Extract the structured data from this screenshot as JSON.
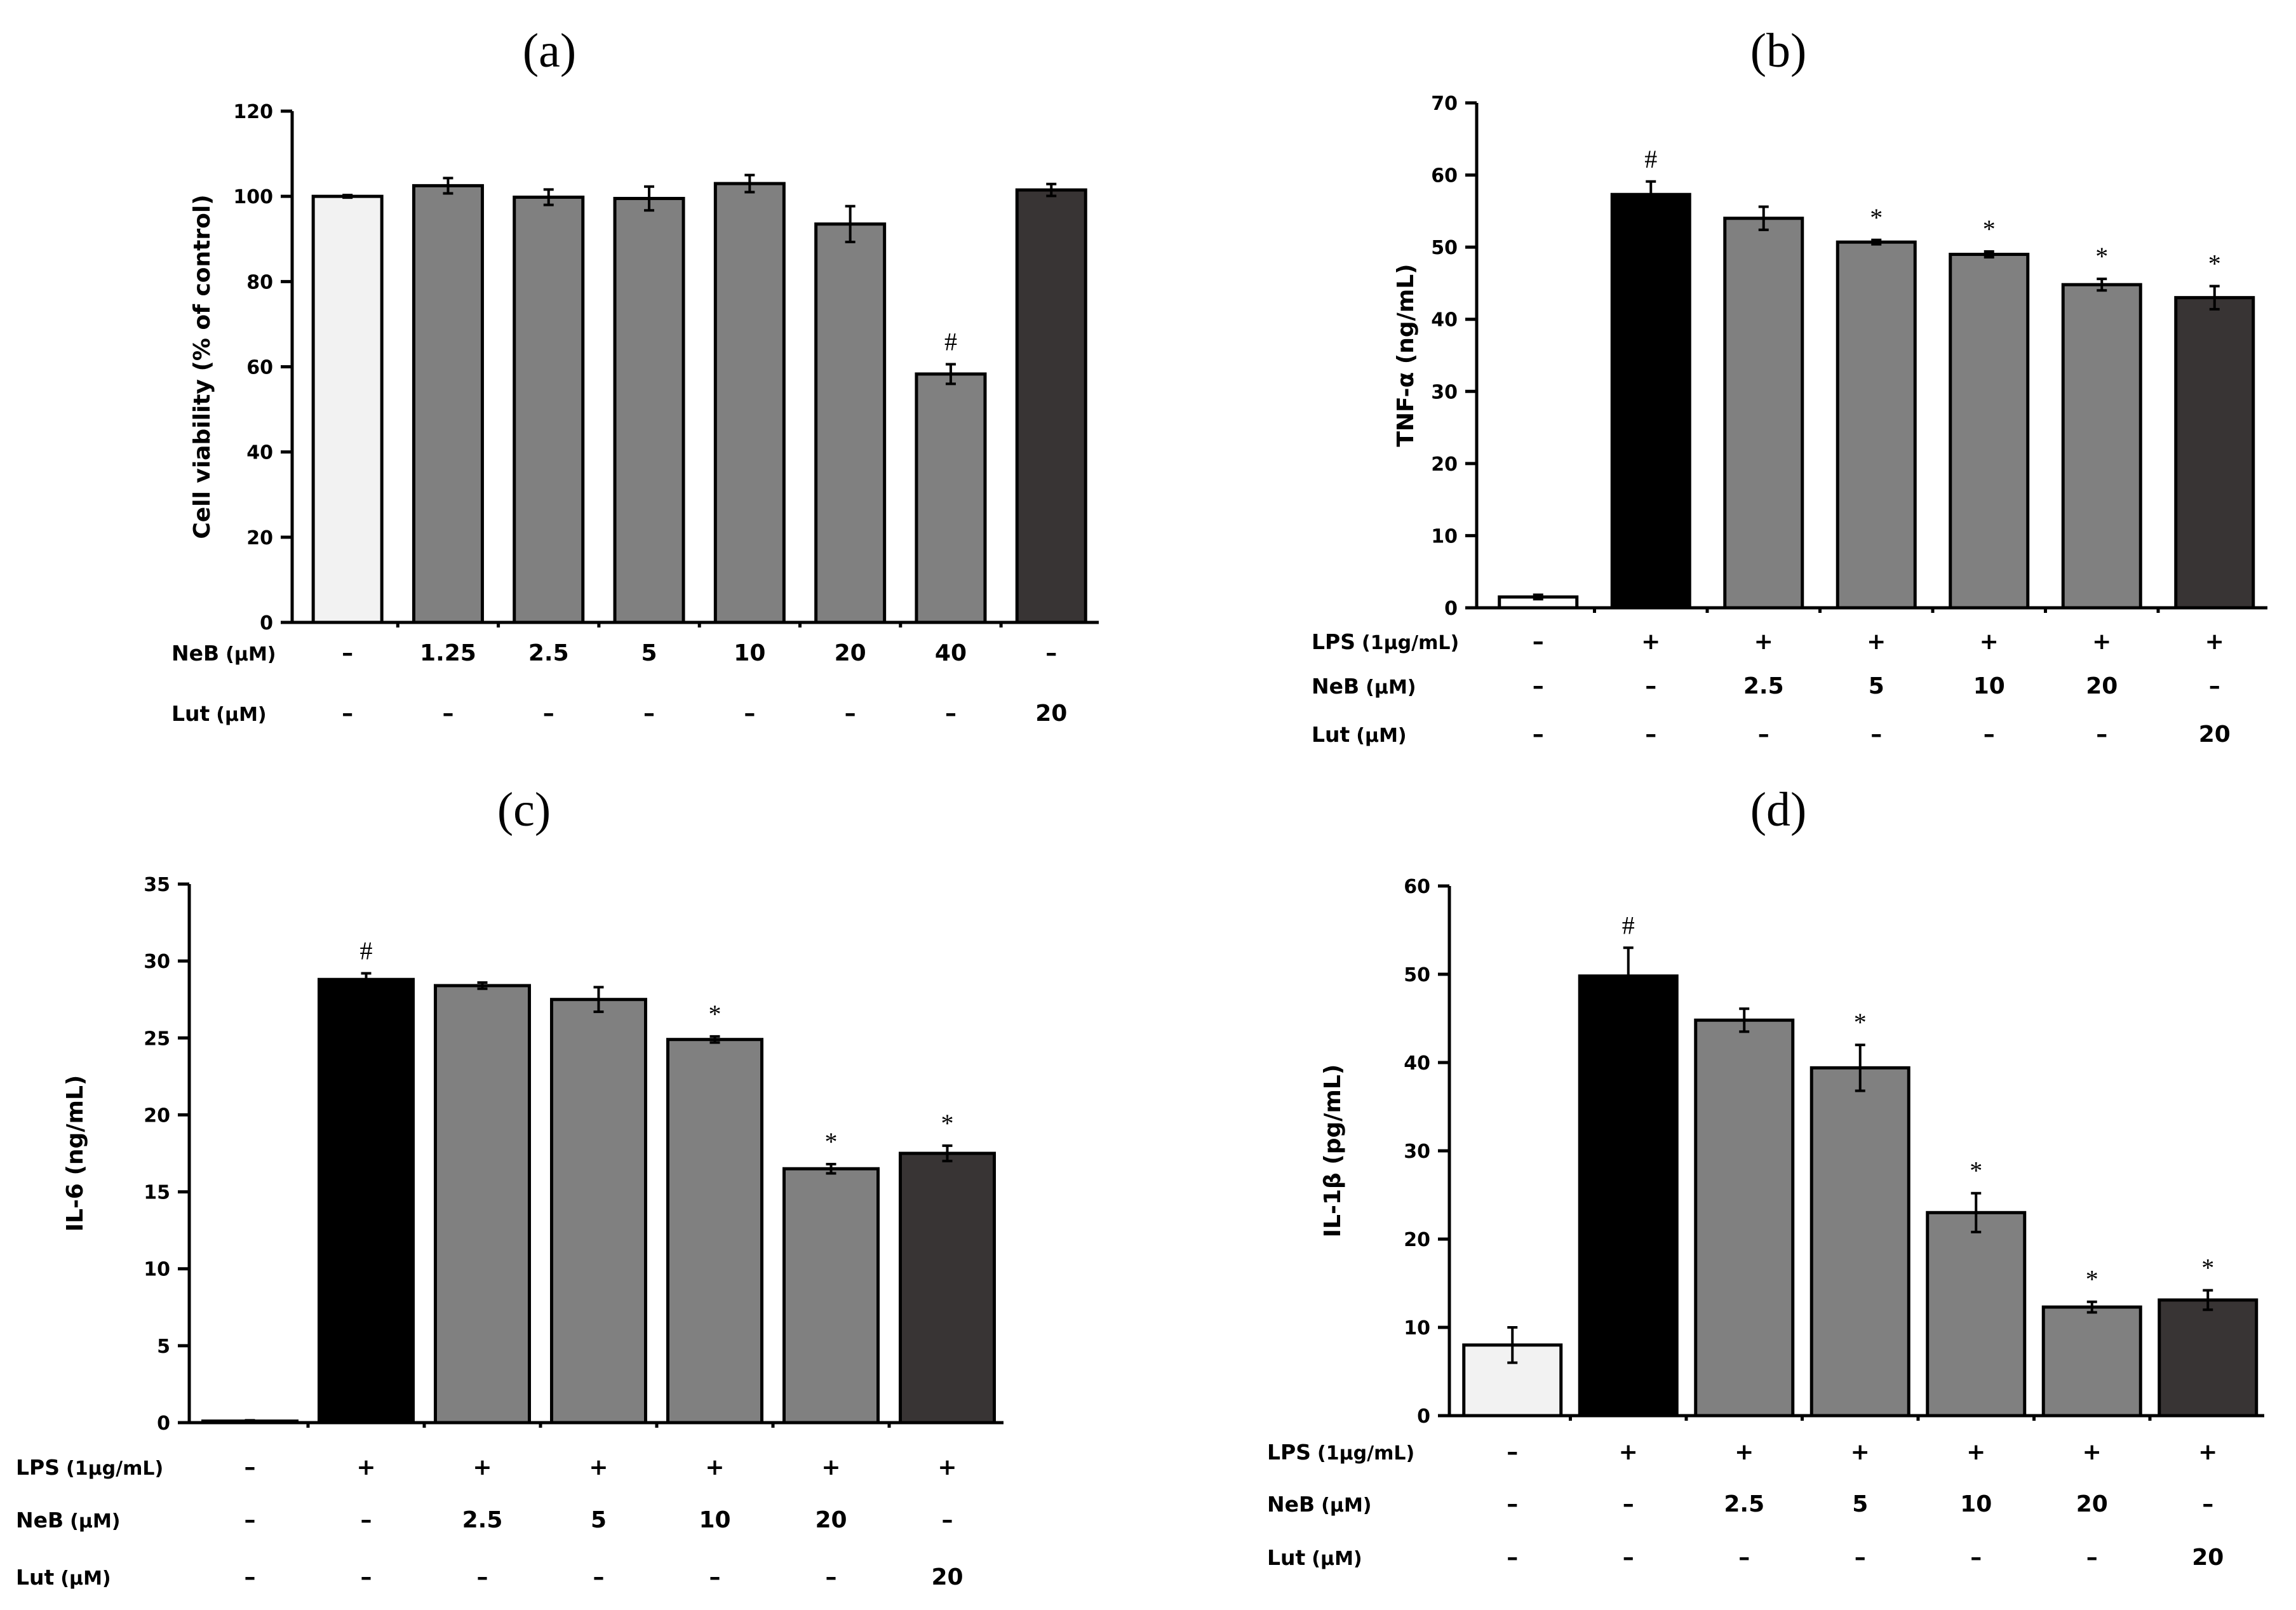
{
  "chart_data": [
    {
      "type": "bar",
      "panel_label": "(a)",
      "ylabel": "Cell viability (% of control)",
      "ylim": [
        0,
        120
      ],
      "yticks": [
        "0",
        "20",
        "40",
        "60",
        "80",
        "100",
        "120"
      ],
      "values": [
        100,
        102.5,
        99.8,
        99.5,
        103,
        93.5,
        58.3,
        101.5
      ],
      "errors": [
        0.3,
        1.8,
        1.8,
        2.8,
        2,
        4.2,
        2.3,
        1.4
      ],
      "colors": [
        "#f2f2f2",
        "#808080",
        "#808080",
        "#808080",
        "#808080",
        "#808080",
        "#808080",
        "#383434"
      ],
      "significance": [
        "",
        "",
        "",
        "",
        "",
        "",
        "#",
        ""
      ],
      "rows": [
        {
          "name": "NeB",
          "unit": "(μM)",
          "labels": [
            "–",
            "1.25",
            "2.5",
            "5",
            "10",
            "20",
            "40",
            "–"
          ]
        },
        {
          "name": "Lut",
          "unit": "(μM)",
          "labels": [
            "–",
            "–",
            "–",
            "–",
            "–",
            "–",
            "–",
            "20"
          ]
        }
      ]
    },
    {
      "type": "bar",
      "panel_label": "(b)",
      "ylabel": "TNF-α (ng/mL)",
      "ylim": [
        0,
        70
      ],
      "yticks": [
        "0",
        "10",
        "20",
        "30",
        "40",
        "50",
        "60",
        "70"
      ],
      "values": [
        1.5,
        57.3,
        54,
        50.7,
        49,
        44.8,
        43
      ],
      "errors": [
        0.3,
        1.8,
        1.6,
        0.3,
        0.4,
        0.8,
        1.6
      ],
      "colors": [
        "#ffffff",
        "#000000",
        "#808080",
        "#808080",
        "#808080",
        "#808080",
        "#383434"
      ],
      "significance": [
        "",
        "#",
        "",
        "*",
        "*",
        "*",
        "*"
      ],
      "rows": [
        {
          "name": "LPS",
          "unit": "(1μg/mL)",
          "labels": [
            "–",
            "+",
            "+",
            "+",
            "+",
            "+",
            "+"
          ]
        },
        {
          "name": "NeB",
          "unit": "(μM)",
          "labels": [
            "–",
            "–",
            "2.5",
            "5",
            "10",
            "20",
            "–"
          ]
        },
        {
          "name": "Lut",
          "unit": "(μM)",
          "labels": [
            "–",
            "–",
            "–",
            "–",
            "–",
            "–",
            "20"
          ]
        }
      ]
    },
    {
      "type": "bar",
      "panel_label": "(c)",
      "ylabel": "IL-6 (ng/mL)",
      "ylim": [
        0,
        35
      ],
      "yticks": [
        "0",
        "5",
        "10",
        "15",
        "20",
        "25",
        "30",
        "35"
      ],
      "values": [
        0.1,
        28.8,
        28.4,
        27.5,
        24.9,
        16.5,
        17.5
      ],
      "errors": [
        0.05,
        0.4,
        0.2,
        0.8,
        0.2,
        0.3,
        0.5
      ],
      "colors": [
        "#f2f2f2",
        "#000000",
        "#808080",
        "#808080",
        "#808080",
        "#808080",
        "#383434"
      ],
      "significance": [
        "",
        "#",
        "",
        "",
        "*",
        "*",
        "*"
      ],
      "rows": [
        {
          "name": "LPS",
          "unit": "(1μg/mL)",
          "labels": [
            "–",
            "+",
            "+",
            "+",
            "+",
            "+",
            "+"
          ]
        },
        {
          "name": "NeB",
          "unit": "(μM)",
          "labels": [
            "–",
            "–",
            "2.5",
            "5",
            "10",
            "20",
            "–"
          ]
        },
        {
          "name": "Lut",
          "unit": "(μM)",
          "labels": [
            "–",
            "–",
            "–",
            "–",
            "–",
            "–",
            "20"
          ]
        }
      ]
    },
    {
      "type": "bar",
      "panel_label": "(d)",
      "ylabel": "IL-1β (pg/mL)",
      "ylim": [
        0,
        60
      ],
      "yticks": [
        "0",
        "10",
        "20",
        "30",
        "40",
        "50",
        "60"
      ],
      "values": [
        8,
        49.8,
        44.8,
        39.4,
        23,
        12.3,
        13.1
      ],
      "errors": [
        2,
        3.2,
        1.3,
        2.6,
        2.2,
        0.6,
        1.1
      ],
      "colors": [
        "#f2f2f2",
        "#000000",
        "#808080",
        "#808080",
        "#808080",
        "#808080",
        "#383434"
      ],
      "significance": [
        "",
        "#",
        "",
        "*",
        "*",
        "*",
        "*"
      ],
      "rows": [
        {
          "name": "LPS",
          "unit": "(1μg/mL)",
          "labels": [
            "–",
            "+",
            "+",
            "+",
            "+",
            "+",
            "+"
          ]
        },
        {
          "name": "NeB",
          "unit": "(μM)",
          "labels": [
            "–",
            "–",
            "2.5",
            "5",
            "10",
            "20",
            "–"
          ]
        },
        {
          "name": "Lut",
          "unit": "(μM)",
          "labels": [
            "–",
            "–",
            "–",
            "–",
            "–",
            "–",
            "20"
          ]
        }
      ]
    }
  ]
}
